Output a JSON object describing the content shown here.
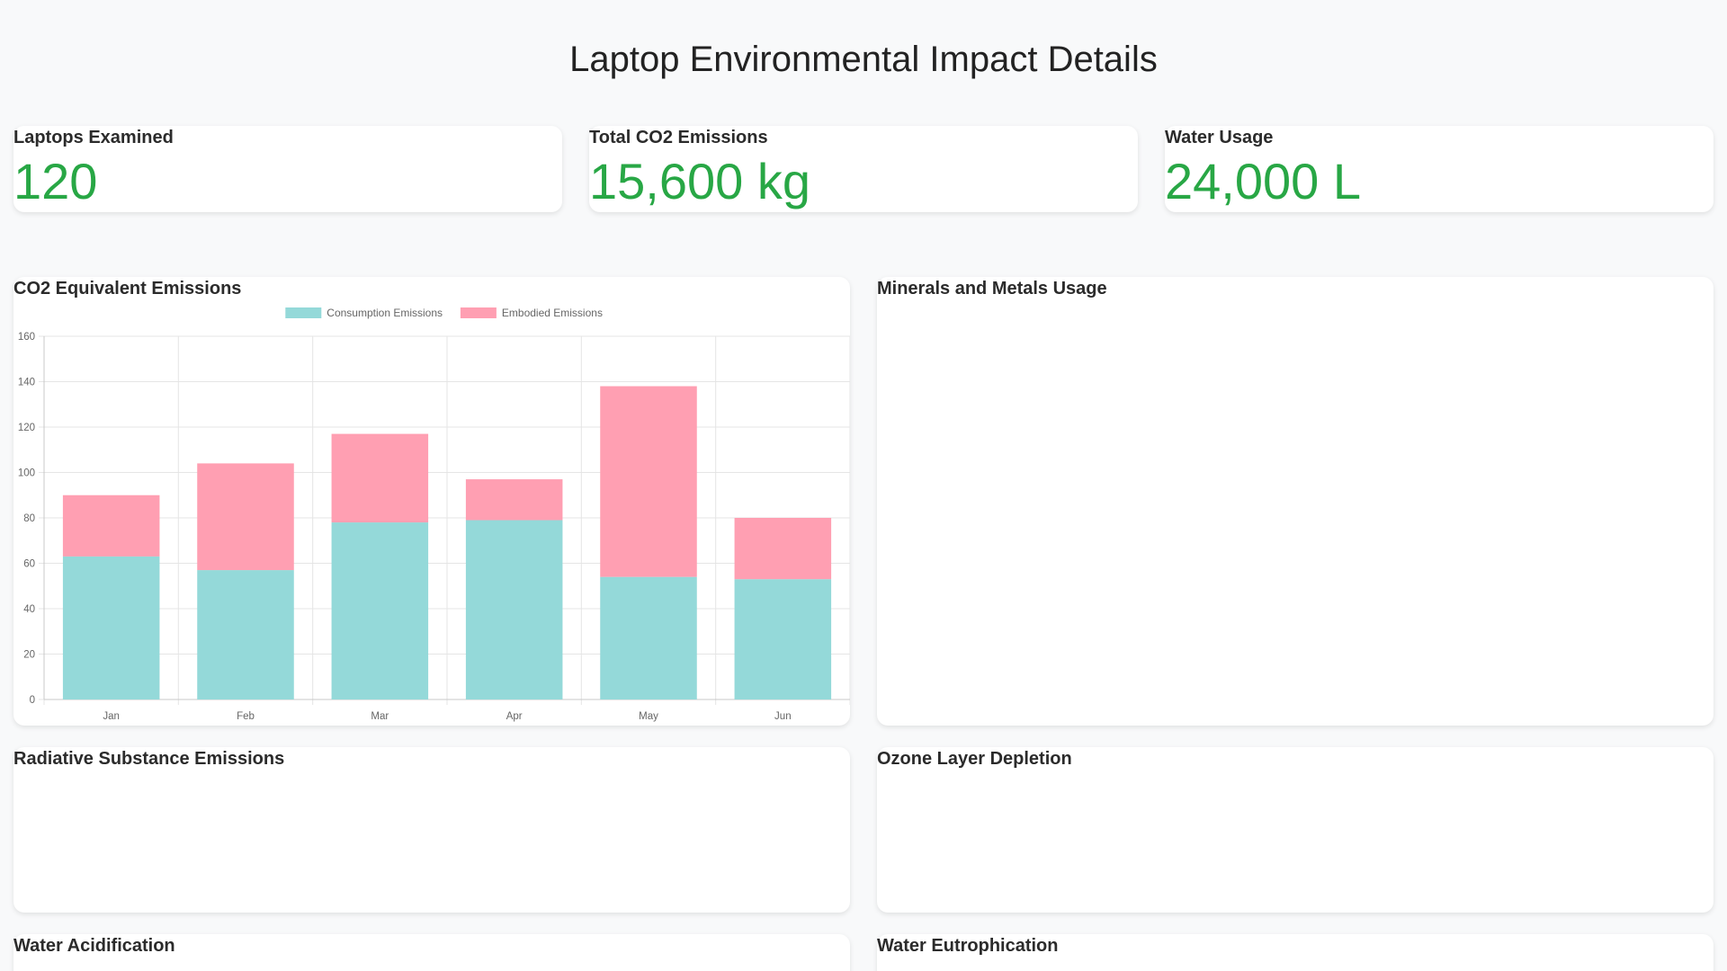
{
  "header": {
    "title": "Laptop Environmental Impact Details"
  },
  "stats": [
    {
      "label": "Laptops Examined",
      "value": "120"
    },
    {
      "label": "Total CO2 Emissions",
      "value": "15,600 kg"
    },
    {
      "label": "Water Usage",
      "value": "24,000 L"
    }
  ],
  "panels": {
    "co2": "CO2 Equivalent Emissions",
    "minerals": "Minerals and Metals Usage",
    "radiative": "Radiative Substance Emissions",
    "ozone": "Ozone Layer Depletion",
    "acidification": "Water Acidification",
    "eutrophication": "Water Eutrophication"
  },
  "colors": {
    "accent": "#28a745",
    "consumption": "#94d9d9",
    "embodied": "#ff9fb2"
  },
  "chart_data": {
    "type": "bar",
    "stacked": true,
    "categories": [
      "Jan",
      "Feb",
      "Mar",
      "Apr",
      "May",
      "Jun"
    ],
    "series": [
      {
        "name": "Consumption Emissions",
        "values": [
          63,
          57,
          78,
          79,
          54,
          53
        ]
      },
      {
        "name": "Embodied Emissions",
        "values": [
          27,
          47,
          39,
          18,
          84,
          27
        ]
      }
    ],
    "ylim": [
      0,
      160
    ],
    "yticks": [
      0,
      20,
      40,
      60,
      80,
      100,
      120,
      140,
      160
    ],
    "grid": true,
    "legend": "top-center"
  }
}
